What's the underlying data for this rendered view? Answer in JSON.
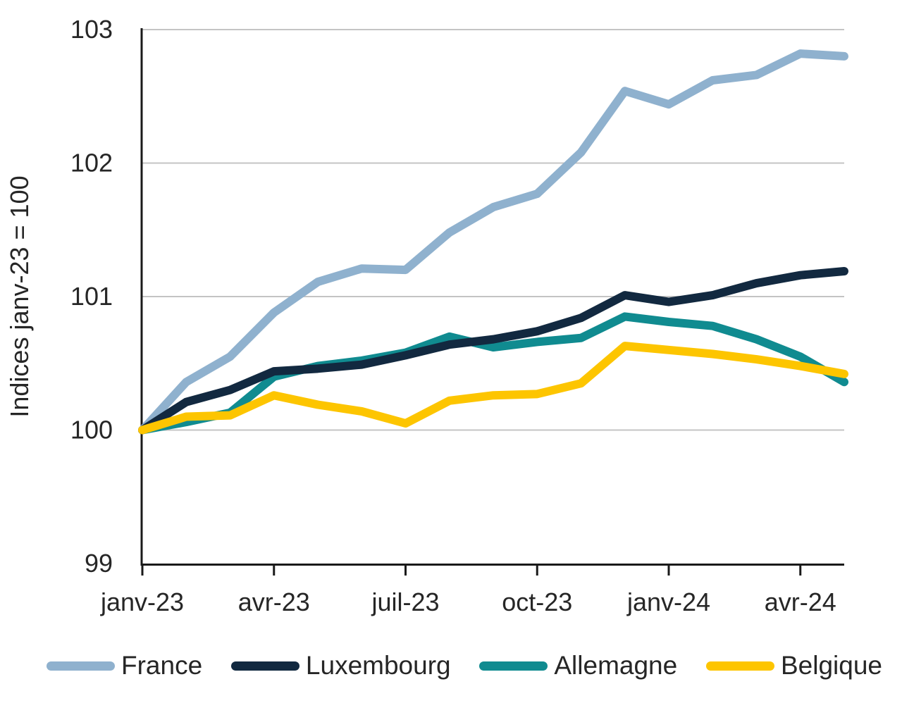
{
  "chart_data": {
    "type": "line",
    "title": "",
    "ylabel": "Indices janv-23 = 100",
    "ylim": [
      99,
      103
    ],
    "y_ticks": [
      103,
      102,
      101,
      100,
      99
    ],
    "x": [
      "janv-23",
      "févr-23",
      "mars-23",
      "avr-23",
      "mai-23",
      "juin-23",
      "juil-23",
      "août-23",
      "sept-23",
      "oct-23",
      "nov-23",
      "déc-23",
      "janv-24",
      "févr-24",
      "mars-24",
      "avr-24",
      "mai-24"
    ],
    "x_tick_labels": [
      "janv-23",
      "avr-23",
      "juil-23",
      "oct-23",
      "janv-24",
      "avr-24"
    ],
    "x_tick_indices": [
      0,
      3,
      6,
      9,
      12,
      15
    ],
    "grid": "horizontal",
    "legend_position": "bottom",
    "series": [
      {
        "name": "France",
        "color": "#8FB1CE",
        "z": 0,
        "values": [
          100.0,
          100.36,
          100.55,
          100.88,
          101.11,
          101.21,
          101.2,
          101.48,
          101.67,
          101.77,
          102.08,
          102.54,
          102.44,
          102.62,
          102.66,
          102.82,
          102.8
        ]
      },
      {
        "name": "Luxembourg",
        "color": "#122940",
        "z": 2,
        "values": [
          100.0,
          100.21,
          100.3,
          100.44,
          100.46,
          100.49,
          100.56,
          100.64,
          100.68,
          100.74,
          100.84,
          101.01,
          100.96,
          101.01,
          101.1,
          101.16,
          101.19
        ]
      },
      {
        "name": "Allemagne",
        "color": "#108B90",
        "z": 1,
        "values": [
          100.0,
          100.06,
          100.13,
          100.4,
          100.48,
          100.52,
          100.58,
          100.7,
          100.62,
          100.66,
          100.69,
          100.85,
          100.81,
          100.78,
          100.68,
          100.55,
          100.36
        ]
      },
      {
        "name": "Belgique",
        "color": "#FDC500",
        "z": 3,
        "values": [
          100.0,
          100.1,
          100.11,
          100.26,
          100.19,
          100.14,
          100.05,
          100.22,
          100.26,
          100.27,
          100.35,
          100.63,
          100.6,
          100.57,
          100.53,
          100.48,
          100.42
        ]
      }
    ]
  },
  "colors": {
    "axis": "#1a1a1a",
    "gridline": "#c4c4c4",
    "text": "#262626",
    "background": "#ffffff"
  }
}
